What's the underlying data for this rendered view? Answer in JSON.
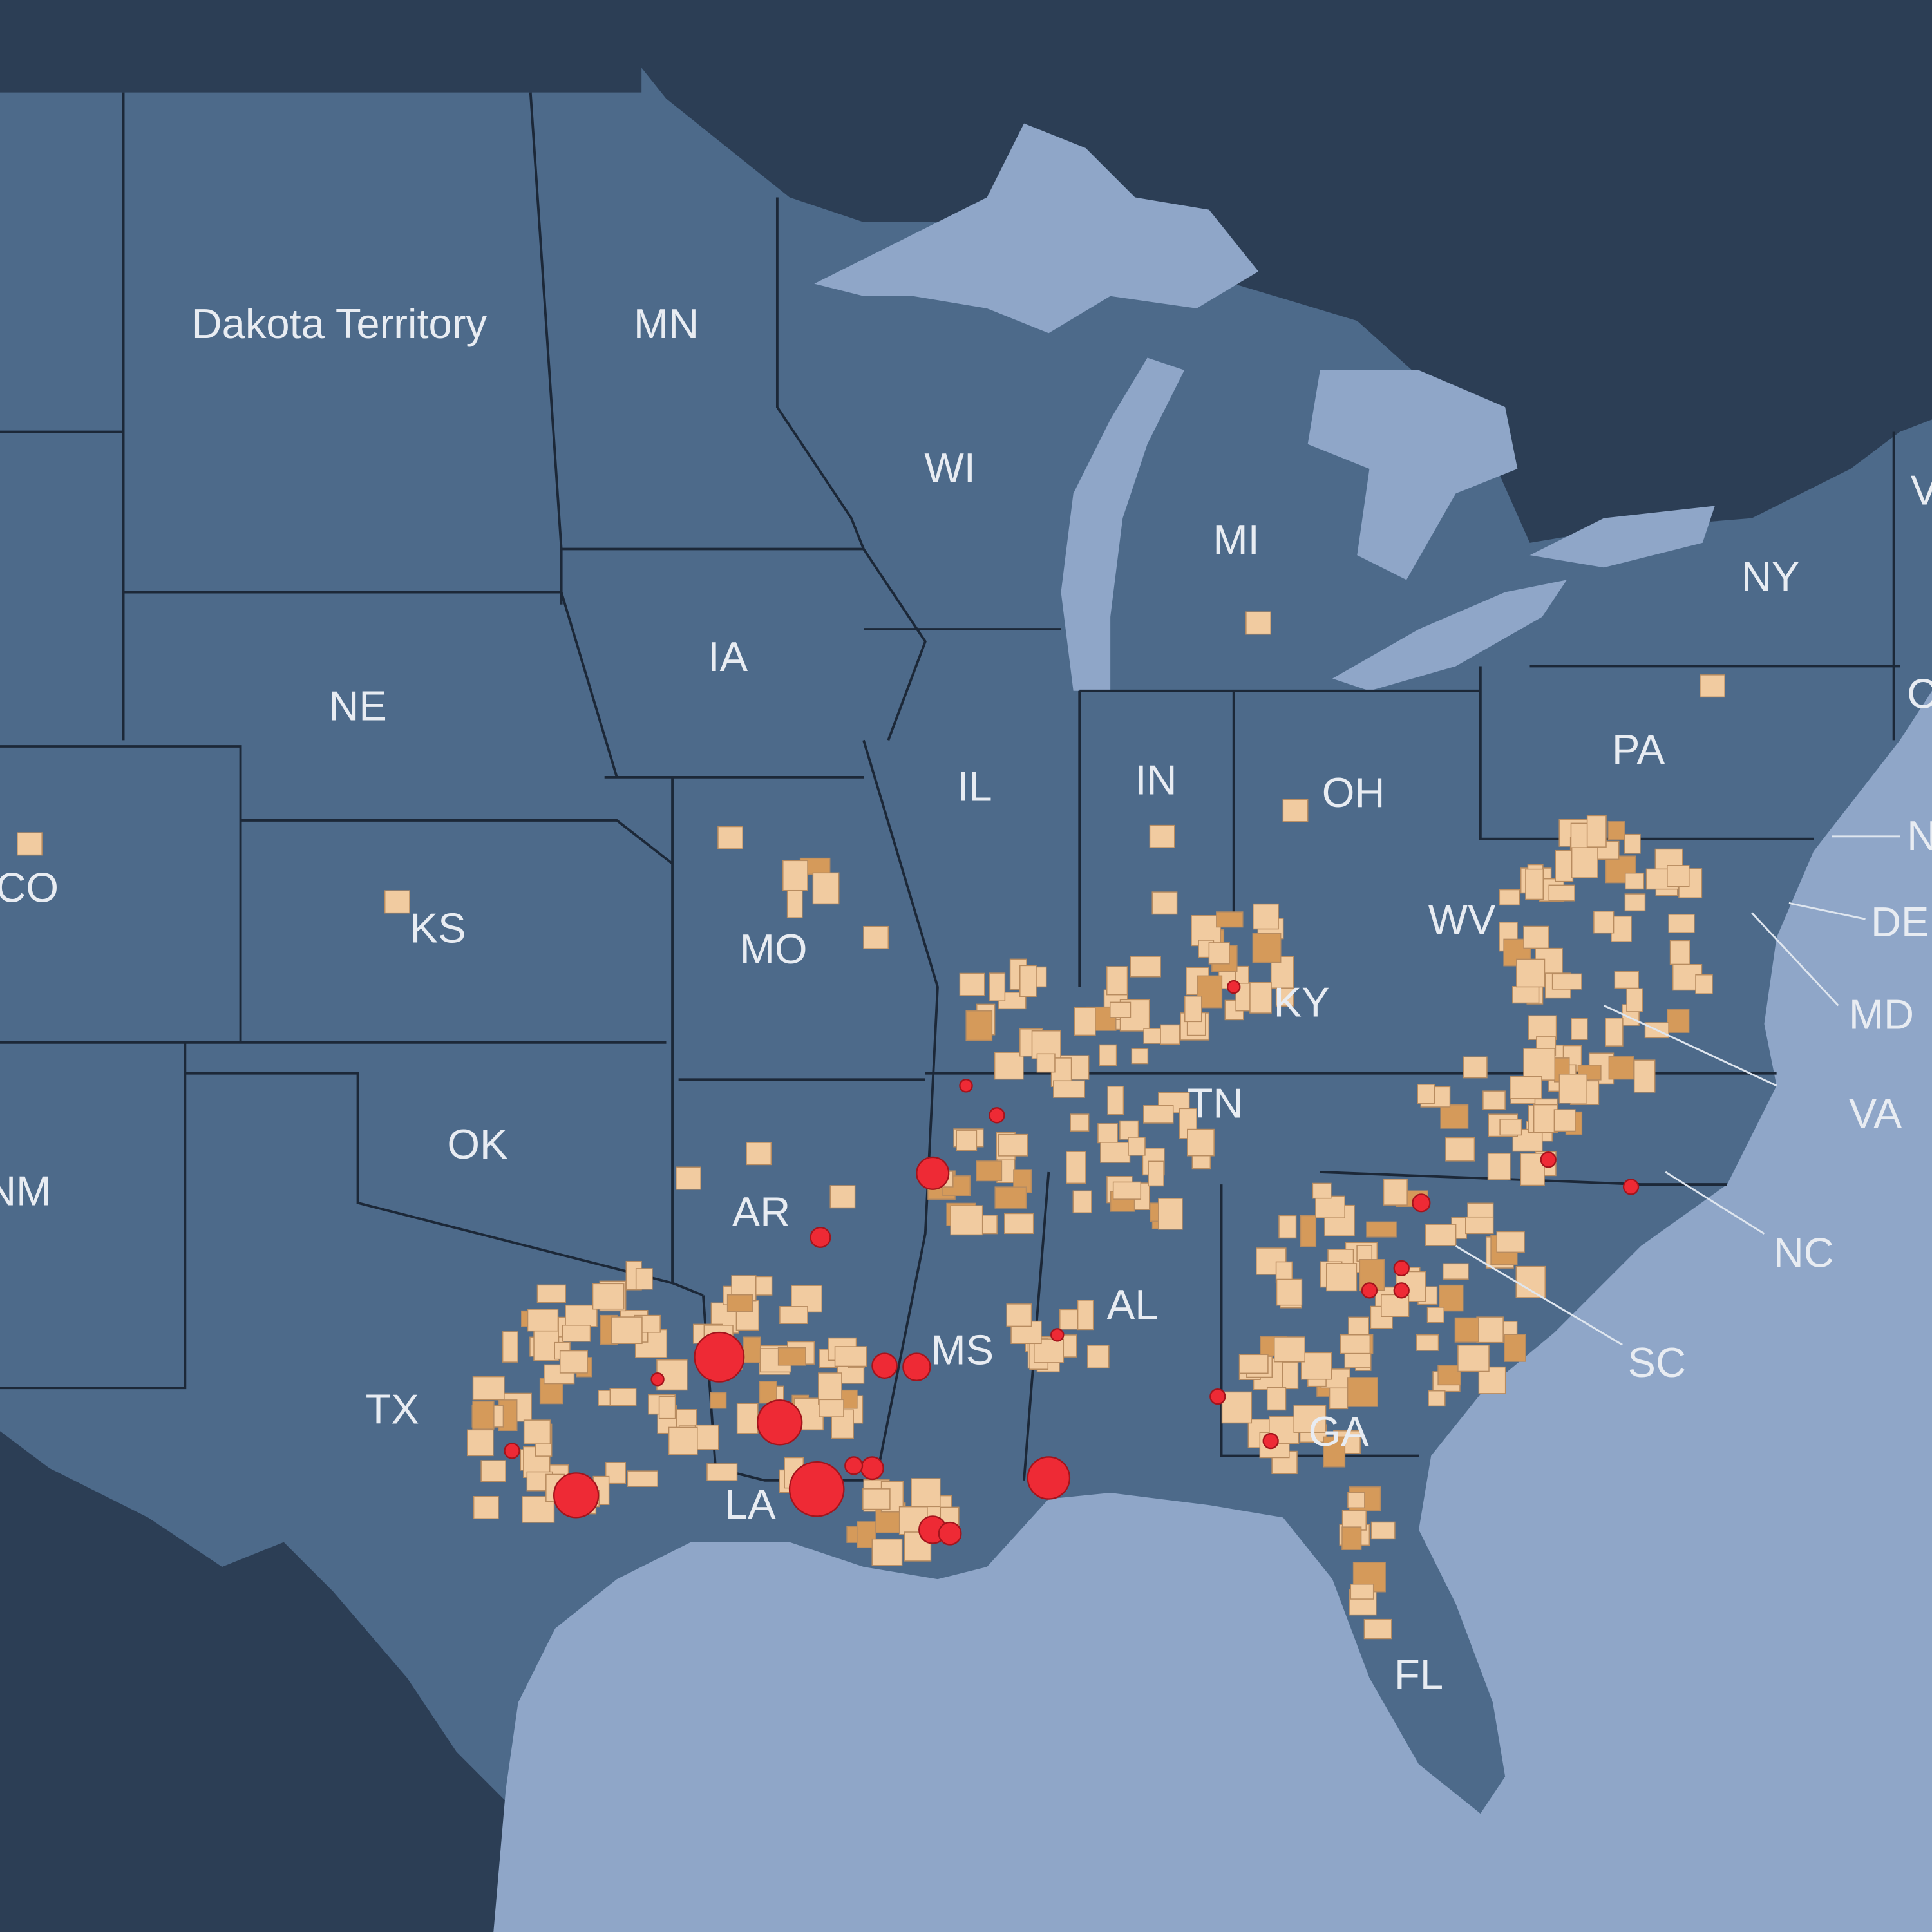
{
  "labels": [
    "Dakota Territory",
    "MN",
    "WI",
    "MI",
    "NY",
    "IA",
    "NE",
    "PA",
    "IL",
    "IN",
    "OH",
    "CO",
    "KS",
    "MO",
    "WV",
    "DE",
    "MD",
    "KY",
    "TN",
    "VA",
    "OK",
    "NM",
    "AR",
    "NC",
    "AL",
    "MS",
    "SC",
    "TX",
    "GA",
    "LA",
    "FL",
    "V",
    "C",
    "N"
  ]
}
